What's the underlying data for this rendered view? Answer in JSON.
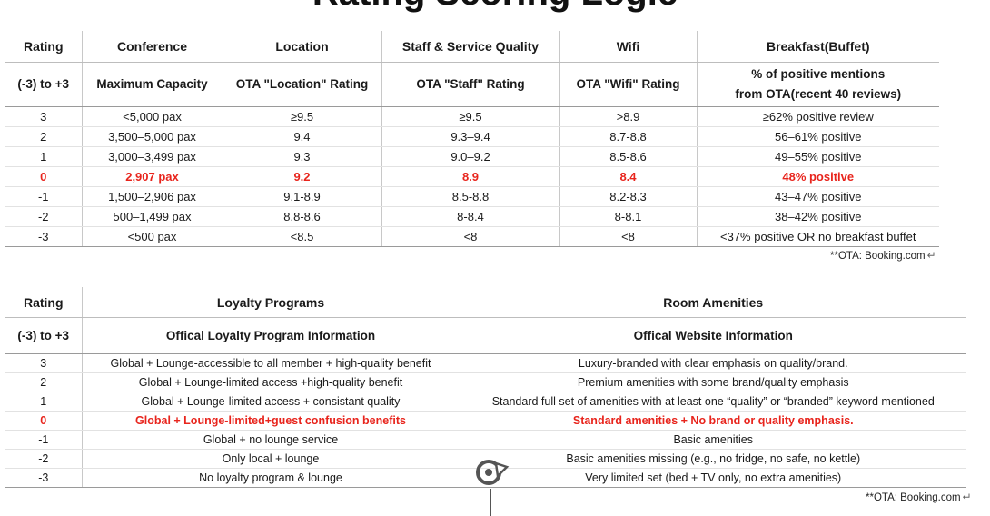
{
  "page": {
    "title": "Rating Scoring Logic"
  },
  "table1": {
    "headers": [
      "Rating",
      "Conference",
      "Location",
      "Staff & Service Quality",
      "Wifi",
      "Breakfast(Buffet)"
    ],
    "subheaders": [
      "(-3) to +3",
      "Maximum Capacity",
      "OTA \"Location\" Rating",
      "OTA \"Staff\" Rating",
      "OTA \"Wifi\" Rating",
      "% of positive mentions",
      "from OTA(recent 40 reviews)"
    ],
    "rows": [
      [
        "3",
        "<5,000 pax",
        "≥9.5",
        "≥9.5",
        ">8.9",
        "≥62% positive review"
      ],
      [
        "2",
        "3,500–5,000 pax",
        "9.4",
        "9.3–9.4",
        "8.7-8.8",
        "56–61% positive"
      ],
      [
        "1",
        "3,000–3,499 pax",
        "9.3",
        "9.0–9.2",
        "8.5-8.6",
        "49–55% positive"
      ],
      [
        "0",
        "2,907 pax",
        "9.2",
        "8.9",
        "8.4",
        "48% positive"
      ],
      [
        "-1",
        "1,500–2,906 pax",
        "9.1-8.9",
        "8.5-8.8",
        "8.2-8.3",
        "43–47% positive"
      ],
      [
        "-2",
        "500–1,499 pax",
        "8.8-8.6",
        "8-8.4",
        "8-8.1",
        "38–42% positive"
      ],
      [
        "-3",
        "<500 pax",
        "<8.5",
        "<8",
        "<8",
        "<37% positive OR no breakfast buffet"
      ]
    ],
    "footnote": "**OTA: Booking.com"
  },
  "table2": {
    "headers": [
      "Rating",
      "Loyalty Programs",
      "Room Amenities"
    ],
    "subheaders": [
      "(-3) to +3",
      "Offical Loyalty Program Information",
      "Offical Website Information"
    ],
    "rows": [
      [
        "3",
        "Global + Lounge-accessible to all member + high-quality benefit",
        "Luxury-branded with clear emphasis on quality/brand."
      ],
      [
        "2",
        "Global + Lounge-limited access +high-quality benefit",
        "Premium amenities with some brand/quality emphasis"
      ],
      [
        "1",
        "Global + Lounge-limited access + consistant quality",
        "Standard full set of amenities with at least one “quality” or “branded” keyword mentioned"
      ],
      [
        "0",
        "Global + Lounge-limited+guest confusion benefits",
        "Standard amenities +  No brand or quality emphasis."
      ],
      [
        "-1",
        "Global + no lounge service",
        "Basic amenities"
      ],
      [
        "-2",
        "Only local + lounge",
        "Basic amenities missing (e.g., no fridge, no safe, no kettle)"
      ],
      [
        "-3",
        "No loyalty program & lounge",
        "Very limited set (bed + TV only, no extra amenities)"
      ]
    ],
    "footnote": "**OTA: Booking.com"
  },
  "colors": {
    "highlight": "#e8241c",
    "text": "#1a1a1a"
  },
  "icons": {
    "cursor": "rotate-cursor-icon",
    "return": "return-arrow-icon"
  }
}
